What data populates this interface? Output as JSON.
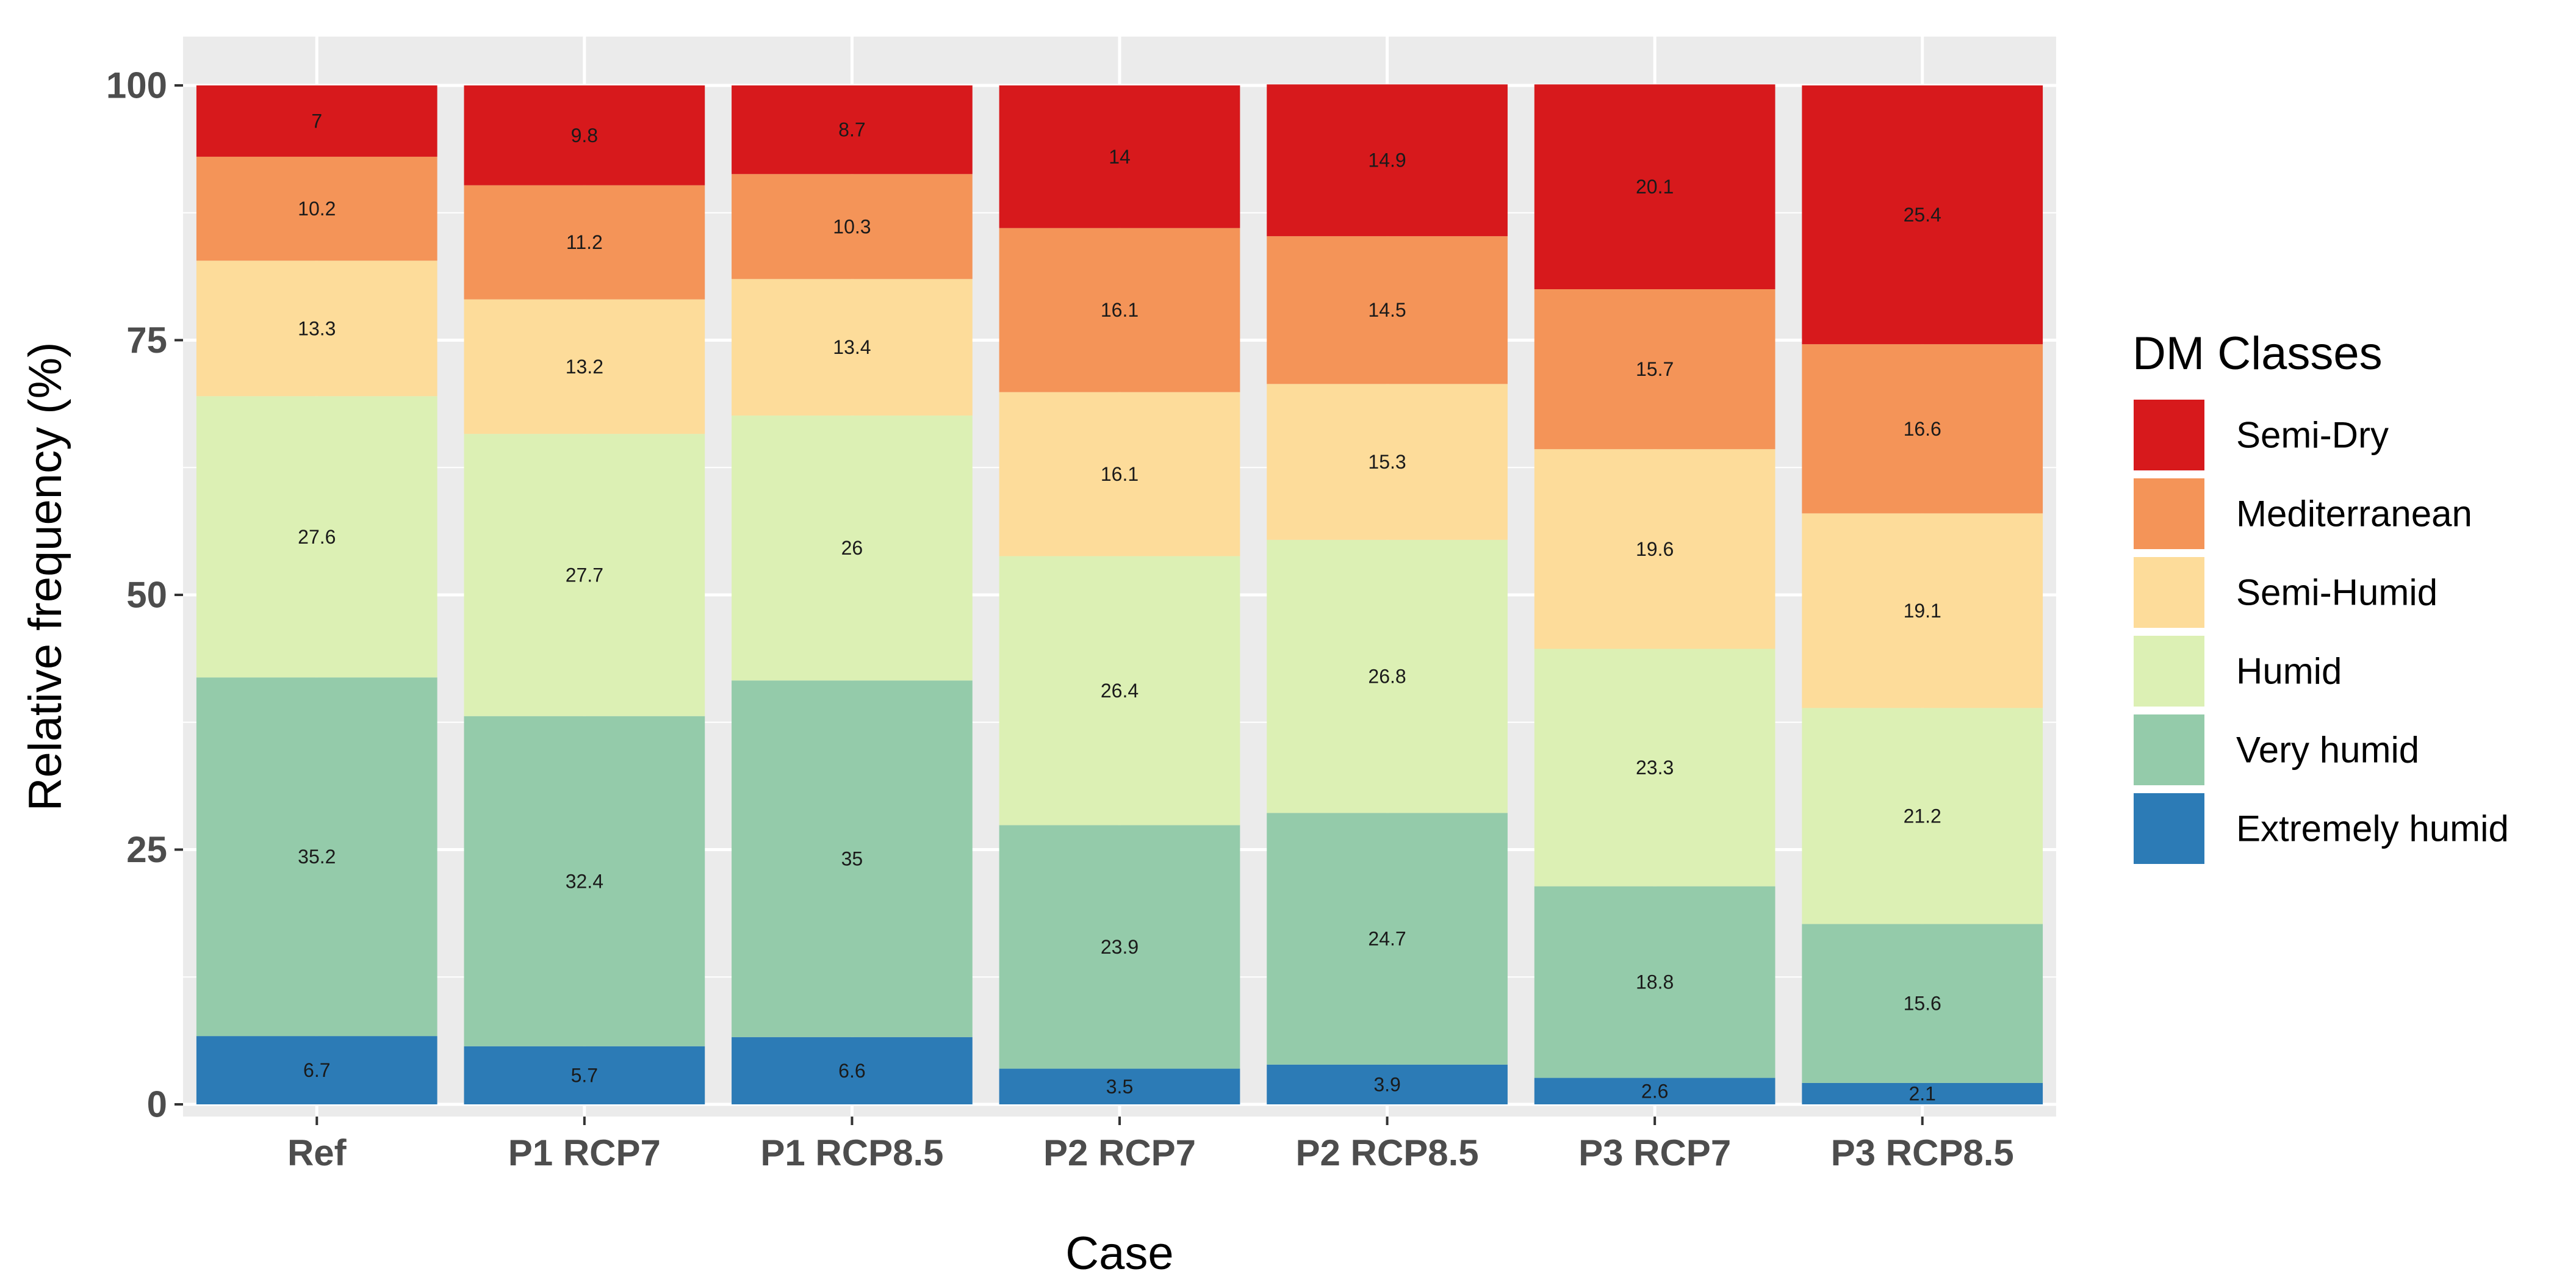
{
  "chart_data": {
    "type": "bar",
    "stacked": true,
    "xlabel": "Case",
    "ylabel": "Relative frequency (%)",
    "ylim": [
      0,
      100
    ],
    "yticks": [
      0,
      25,
      50,
      75,
      100
    ],
    "grid": true,
    "categories": [
      "Ref",
      "P1 RCP7",
      "P1 RCP8.5",
      "P2 RCP7",
      "P2 RCP8.5",
      "P3 RCP7",
      "P3 RCP8.5"
    ],
    "legend": {
      "title": "DM Classes",
      "position": "right"
    },
    "series": [
      {
        "name": "Extremely humid",
        "color": "#2c7bb6",
        "values": [
          6.7,
          5.7,
          6.6,
          3.5,
          3.9,
          2.6,
          2.1
        ]
      },
      {
        "name": "Very humid",
        "color": "#94cbaa",
        "values": [
          35.2,
          32.4,
          35,
          23.9,
          24.7,
          18.8,
          15.6
        ]
      },
      {
        "name": "Humid",
        "color": "#dcf0b4",
        "values": [
          27.6,
          27.7,
          26,
          26.4,
          26.8,
          23.3,
          21.2
        ]
      },
      {
        "name": "Semi-Humid",
        "color": "#fddc9a",
        "values": [
          13.3,
          13.2,
          13.4,
          16.1,
          15.3,
          19.6,
          19.1
        ]
      },
      {
        "name": "Mediterranean",
        "color": "#f49458",
        "values": [
          10.2,
          11.2,
          10.3,
          16.1,
          14.5,
          15.7,
          16.6
        ]
      },
      {
        "name": "Semi-Dry",
        "color": "#d7191c",
        "values": [
          7,
          9.8,
          8.7,
          14,
          14.9,
          20.1,
          25.4
        ]
      }
    ]
  }
}
